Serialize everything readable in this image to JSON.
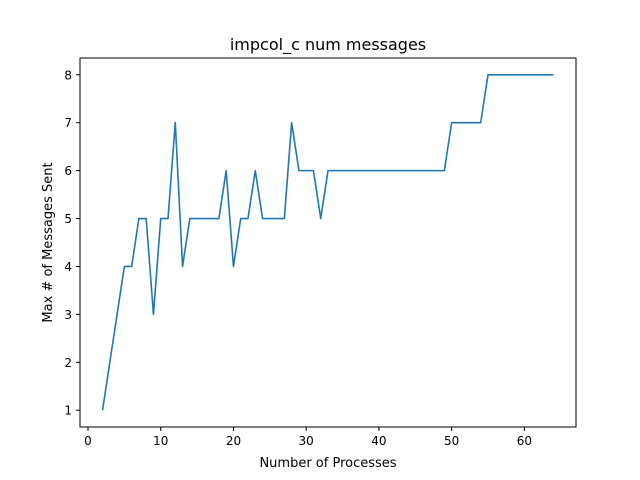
{
  "chart_data": {
    "type": "line",
    "title": "impcol_c num messages",
    "xlabel": "Number of Processes",
    "ylabel": "Max # of Messages Sent",
    "xlim": [
      -1.1,
      67.1
    ],
    "ylim": [
      0.65,
      8.35
    ],
    "xticks": [
      0,
      10,
      20,
      30,
      40,
      50,
      60
    ],
    "yticks": [
      1,
      2,
      3,
      4,
      5,
      6,
      7,
      8
    ],
    "grid": false,
    "legend": "none",
    "series": [
      {
        "color": "#1f77b4",
        "x": [
          2,
          3,
          4,
          5,
          6,
          7,
          8,
          9,
          10,
          11,
          12,
          13,
          14,
          15,
          16,
          17,
          18,
          19,
          20,
          21,
          22,
          23,
          24,
          25,
          26,
          27,
          28,
          29,
          30,
          31,
          32,
          33,
          34,
          35,
          36,
          37,
          38,
          39,
          40,
          41,
          42,
          43,
          44,
          45,
          46,
          47,
          48,
          49,
          50,
          51,
          52,
          53,
          54,
          55,
          56,
          57,
          58,
          59,
          60,
          61,
          62,
          63,
          64
        ],
        "y": [
          1,
          2,
          3,
          4,
          4,
          5,
          5,
          3,
          5,
          5,
          7,
          4,
          5,
          5,
          5,
          5,
          5,
          6,
          4,
          5,
          5,
          6,
          5,
          5,
          5,
          5,
          7,
          6,
          6,
          6,
          5,
          6,
          6,
          6,
          6,
          6,
          6,
          6,
          6,
          6,
          6,
          6,
          6,
          6,
          6,
          6,
          6,
          6,
          7,
          7,
          7,
          7,
          7,
          8,
          8,
          8,
          8,
          8,
          8,
          8,
          8,
          8,
          8
        ]
      }
    ]
  }
}
